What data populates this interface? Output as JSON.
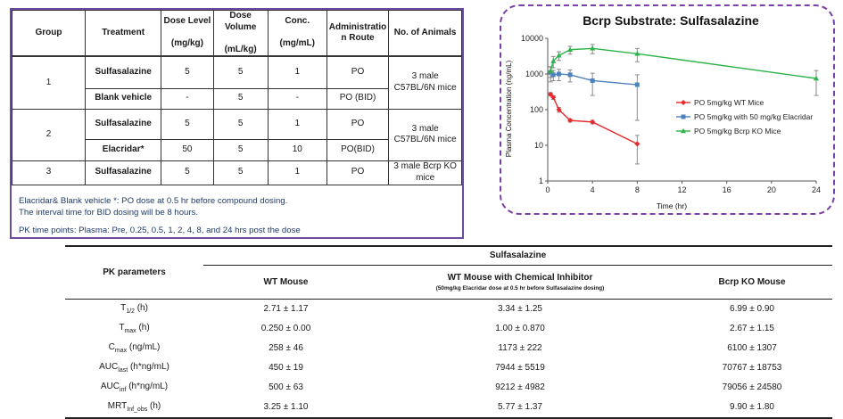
{
  "design_table": {
    "headers": {
      "group": "Group",
      "treatment": "Treatment",
      "dose_level": "Dose Level",
      "dose_level_unit": "(mg/kg)",
      "dose_volume": "Dose Volume",
      "dose_volume_unit": "(mL/kg)",
      "conc": "Conc.",
      "conc_unit": "(mg/mL)",
      "admin_route_1": "Administratio",
      "admin_route_2": "n Route",
      "animals": "No. of Animals"
    },
    "rows": [
      {
        "group": "1",
        "treatment": "Sulfasalazine",
        "dose_level": "5",
        "dose_volume": "5",
        "conc": "1",
        "route": "PO",
        "animals_1": "3 male",
        "animals_2": "C57BL/6N mice"
      },
      {
        "treatment": "Blank vehicle",
        "dose_level": "-",
        "dose_volume": "5",
        "conc": "-",
        "route": "PO    (BID)"
      },
      {
        "group": "2",
        "treatment": "Sulfasalazine",
        "dose_level": "5",
        "dose_volume": "5",
        "conc": "1",
        "route": "PO",
        "animals_1": "3 male",
        "animals_2": "C57BL/6N mice"
      },
      {
        "treatment": "Elacridar*",
        "dose_level": "50",
        "dose_volume": "5",
        "conc": "10",
        "route": "PO(BID)"
      },
      {
        "group": "3",
        "treatment": "Sulfasalazine",
        "dose_level": "5",
        "dose_volume": "5",
        "conc": "1",
        "route": "PO",
        "animals_1": "3 male Bcrp KO",
        "animals_2": "mice"
      }
    ],
    "notes": {
      "line1": "Elacridar& Blank vehicle *: PO dose at 0.5 hr before compound dosing.",
      "line2": "The interval time for BID dosing will be 8 hours.",
      "pk_points": "PK time points: Plasma: Pre, 0.25, 0.5, 1, 2, 4, 8, and 24 hrs post the dose"
    }
  },
  "chart_data": {
    "type": "line",
    "title": "Bcrp Substrate: Sulfasalazine",
    "xlabel": "Time (hr)",
    "ylabel": "Plasma Concentration (ng/mL)",
    "xlim": [
      0,
      24
    ],
    "xticks": [
      0,
      4,
      8,
      12,
      16,
      20,
      24
    ],
    "ylim": [
      1,
      10000
    ],
    "yscale": "log",
    "yticks": [
      1,
      10,
      100,
      1000,
      10000
    ],
    "legend_position": "right",
    "series": [
      {
        "name": "PO 5mg/kg WT Mice",
        "color": "#e8282a",
        "marker": "diamond",
        "x": [
          0.25,
          0.5,
          1,
          2,
          4,
          8
        ],
        "y": [
          270,
          220,
          100,
          50,
          45,
          11
        ],
        "err": [
          30,
          25,
          15,
          5,
          5,
          8
        ]
      },
      {
        "name": "PO 5mg/kg with 50 mg/kg Elacridar",
        "color": "#4f81bd",
        "marker": "square",
        "x": [
          0.25,
          0.5,
          1,
          2,
          4,
          8
        ],
        "y": [
          1100,
          950,
          1000,
          950,
          650,
          500
        ],
        "err": [
          500,
          300,
          350,
          350,
          400,
          450
        ]
      },
      {
        "name": "PO 5mg/kg Bcrp KO Mice",
        "color": "#2db34a",
        "marker": "triangle",
        "x": [
          0.25,
          0.5,
          1,
          2,
          4,
          8,
          24
        ],
        "y": [
          1200,
          2300,
          3300,
          4800,
          5200,
          3700,
          750
        ],
        "err": [
          400,
          800,
          900,
          1200,
          1500,
          1500,
          500
        ]
      }
    ]
  },
  "pk_table": {
    "compound_header": "Sulfasalazine",
    "param_header": "PK parameters",
    "columns": {
      "wt": "WT Mouse",
      "inhibitor": "WT Mouse with Chemical Inhibitor",
      "inhibitor_note": "(50mg/kg Elacridar dose at 0.5 hr before Sulfasalazine dosing)",
      "ko": "Bcrp KO Mouse"
    },
    "rows": [
      {
        "p": "T",
        "sub": "1/2",
        "unit": " (h)",
        "wt": "2.71 ± 1.17",
        "inh": "3.34 ± 1.25",
        "ko": "6.99 ± 0.90"
      },
      {
        "p": "T",
        "sub": "max",
        "unit": " (h)",
        "wt": "0.250 ± 0.00",
        "inh": "1.00 ± 0.870",
        "ko": "2.67 ± 1.15"
      },
      {
        "p": "C",
        "sub": "max",
        "unit": " (ng/mL)",
        "wt": "258 ± 46",
        "inh": "1173 ± 222",
        "ko": "6100 ± 1307"
      },
      {
        "p": "AUC",
        "sub": "last",
        "unit": " (h*ng/mL)",
        "wt": "450 ± 19",
        "inh": "7944 ± 5519",
        "ko": "70767 ± 18753"
      },
      {
        "p": "AUC",
        "sub": "inf",
        "unit": " (h*ng/mL)",
        "wt": "500 ± 63",
        "inh": "9212 ± 4982",
        "ko": "79056 ± 24580"
      },
      {
        "p": "MRT",
        "sub": "Inf_obs",
        "unit": " (h)",
        "wt": "3.25 ± 1.10",
        "inh": "5.77 ± 1.37",
        "ko": "9.90 ± 1.80"
      }
    ]
  }
}
